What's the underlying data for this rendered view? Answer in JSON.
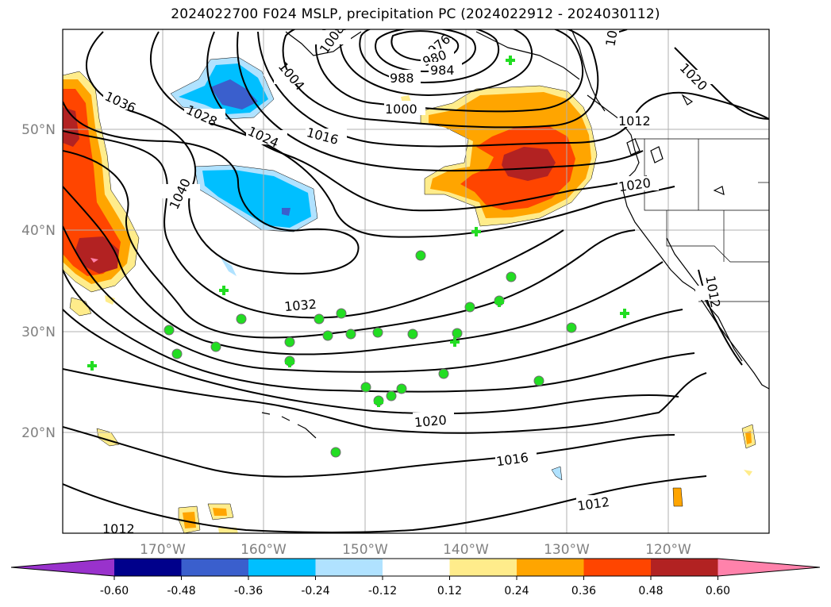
{
  "title": "2024022700 F024 MSLP, precipitation PC (2024022912 - 2024030112)",
  "axes": {
    "lon_labels": [
      "170°W",
      "160°W",
      "150°W",
      "140°W",
      "130°W",
      "120°W"
    ],
    "lat_labels": [
      "50°N",
      "40°N",
      "30°N",
      "20°N"
    ]
  },
  "contour_labels": [
    "976",
    "980",
    "984",
    "988",
    "1000",
    "1004",
    "1008",
    "1012",
    "1016",
    "1020",
    "1024",
    "1028",
    "1032",
    "1036",
    "1040"
  ],
  "colorbar": {
    "tick_labels": [
      "-0.60",
      "-0.48",
      "-0.36",
      "-0.24",
      "-0.12",
      "0.12",
      "0.24",
      "0.36",
      "0.48",
      "0.60"
    ],
    "colors": [
      "#9932cc",
      "#00008b",
      "#3a5fcd",
      "#00bfff",
      "#b0e2ff",
      "#ffffff",
      "#ffec8b",
      "#ffa500",
      "#ff4500",
      "#b22222",
      "#ff82ab"
    ]
  },
  "station_colors": {
    "circle": "#22dd22",
    "cross": "#22dd22"
  }
}
